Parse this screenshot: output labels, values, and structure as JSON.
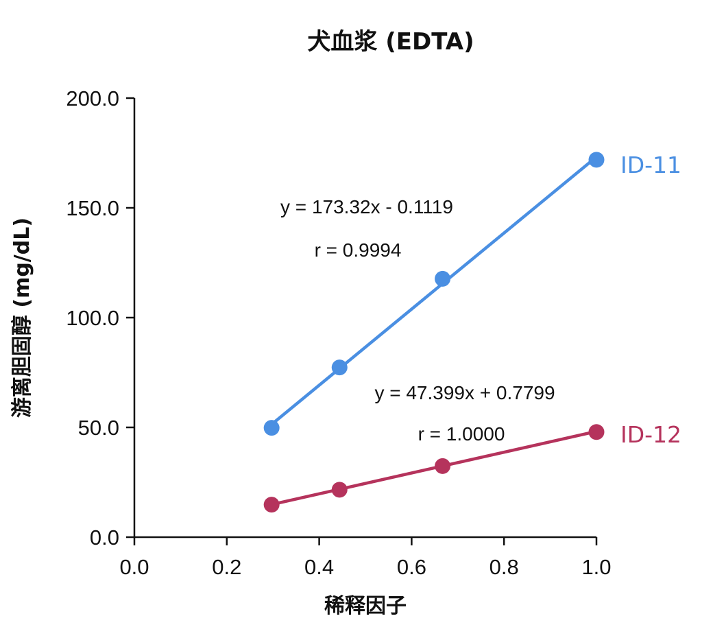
{
  "chart_data": {
    "type": "scatter",
    "title": "犬血浆 (EDTA)",
    "xlabel": "稀释因子",
    "ylabel": "游离胆固醇 (mg/dL)",
    "xlim": [
      0.0,
      1.0
    ],
    "ylim": [
      0.0,
      200.0
    ],
    "x_ticks": [
      "0.0",
      "0.2",
      "0.4",
      "0.6",
      "0.8",
      "1.0"
    ],
    "y_ticks": [
      "0.0",
      "50.0",
      "100.0",
      "150.0",
      "200.0"
    ],
    "grid": false,
    "series": [
      {
        "name": "ID-11",
        "color": "#4a8fe2",
        "x": [
          0.297,
          0.444,
          0.667,
          1.0
        ],
        "y": [
          49.8,
          77.3,
          117.7,
          171.9
        ],
        "fit": {
          "slope": 173.32,
          "intercept": -0.1119
        },
        "equation": "y = 173.32x - 0.1119",
        "r_text": "r = 0.9994"
      },
      {
        "name": "ID-12",
        "color": "#b5335c",
        "x": [
          0.297,
          0.444,
          0.667,
          1.0
        ],
        "y": [
          14.8,
          21.6,
          32.4,
          47.9
        ],
        "fit": {
          "slope": 47.399,
          "intercept": 0.7799
        },
        "equation": "y = 47.399x + 0.7799",
        "r_text": "r = 1.0000"
      }
    ]
  }
}
